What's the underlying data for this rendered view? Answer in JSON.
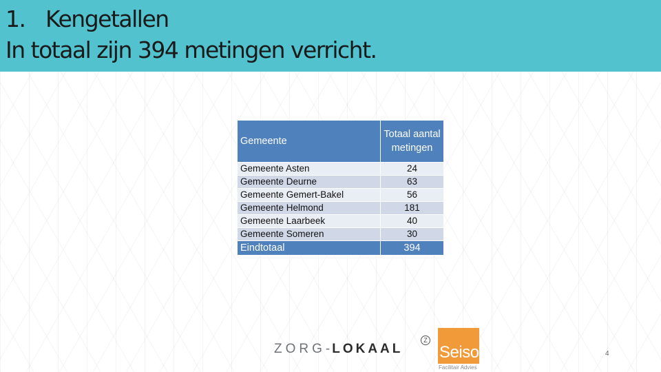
{
  "header": {
    "title_number": "1.",
    "title": "Kengetallen",
    "subtitle": "In totaal zijn 394 metingen verricht."
  },
  "table": {
    "columns": [
      "Gemeente",
      "Totaal aantal metingen"
    ],
    "rows": [
      {
        "gemeente": "Gemeente Asten",
        "value": "24"
      },
      {
        "gemeente": "Gemeente Deurne",
        "value": "63"
      },
      {
        "gemeente": "Gemeente Gemert-Bakel",
        "value": "56"
      },
      {
        "gemeente": "Gemeente Helmond",
        "value": "181"
      },
      {
        "gemeente": "Gemeente Laarbeek",
        "value": "40"
      },
      {
        "gemeente": "Gemeente Someren",
        "value": "30"
      }
    ],
    "total": {
      "label": "Eindtotaal",
      "value": "394"
    }
  },
  "logos": {
    "zorg_part": "ZORG",
    "separator": "-",
    "lokaal_part": "LOKAAL",
    "mark": "Z",
    "seiso_word": "Seiso",
    "seiso_tagline": "Facilitair Advies"
  },
  "colors": {
    "header_bg": "#52c2cf",
    "table_header_bg": "#4f81bd",
    "row_light": "#e9edf4",
    "row_dark": "#d0d8e8",
    "seiso_orange": "#f09a3a"
  },
  "page_number": "4"
}
